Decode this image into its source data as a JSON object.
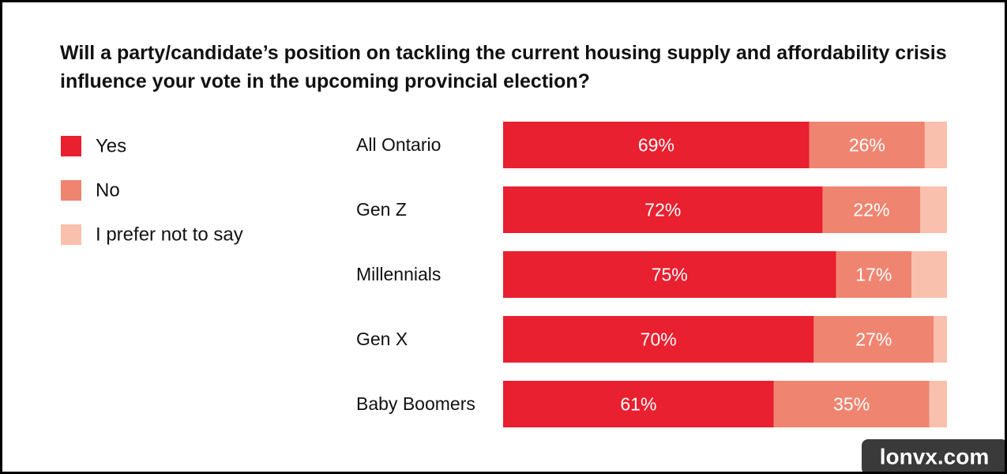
{
  "chart_data": {
    "type": "stacked-bar-horizontal",
    "title": "Will a party/candidate’s position on tackling the current housing supply and affordability crisis influence your vote in the upcoming provincial election?",
    "categories": [
      "All Ontario",
      "Gen Z",
      "Millennials",
      "Gen X",
      "Baby Boomers"
    ],
    "xlim": [
      0,
      100
    ],
    "series": [
      {
        "name": "Yes",
        "color": "#e8202f",
        "values": [
          69,
          72,
          75,
          70,
          61
        ],
        "value_labels": [
          "69%",
          "72%",
          "75%",
          "70%",
          "61%"
        ]
      },
      {
        "name": "No",
        "color": "#ef8570",
        "values": [
          26,
          22,
          17,
          27,
          35
        ],
        "value_labels": [
          "26%",
          "22%",
          "17%",
          "27%",
          "35%"
        ]
      },
      {
        "name": "I prefer not to say",
        "color": "#f8c0ad",
        "values": [
          5,
          6,
          8,
          3,
          4
        ]
      }
    ],
    "watermark": "lonvx.com"
  }
}
